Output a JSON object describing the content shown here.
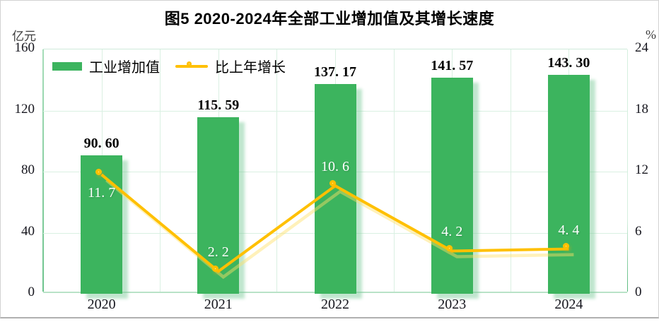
{
  "title": "图5 2020-2024年全部工业增加值及其增长速度",
  "left_axis": {
    "unit": "亿元",
    "ticks": [
      "160",
      "120",
      "80",
      "40",
      "0"
    ]
  },
  "right_axis": {
    "unit": "%",
    "ticks": [
      "24",
      "18",
      "12",
      "6",
      "0"
    ]
  },
  "legend": [
    {
      "label": "工业增加值",
      "type": "bar"
    },
    {
      "label": "比上年增长",
      "type": "line"
    }
  ],
  "colors": {
    "bar": "#3cb45e",
    "line": "#ffc000",
    "line_shadow": "#ffe066",
    "gridline": "#daf0e2",
    "bar_label": "#000000",
    "point_label": "#ffffff"
  },
  "chart_data": {
    "type": "bar+line combo",
    "title": "图5 2020-2024年全部工业增加值及其增长速度",
    "categories": [
      "2020",
      "2021",
      "2022",
      "2023",
      "2024"
    ],
    "series": [
      {
        "name": "工业增加值",
        "type": "bar",
        "axis": "left",
        "values": [
          90.6,
          115.59,
          137.17,
          141.57,
          143.3
        ],
        "labels": [
          "90. 60",
          "115. 59",
          "137. 17",
          "141. 57",
          "143. 30"
        ]
      },
      {
        "name": "比上年增长",
        "type": "line",
        "axis": "right",
        "values": [
          11.7,
          2.2,
          10.6,
          4.2,
          4.4
        ],
        "labels": [
          "11. 7",
          "2. 2",
          "10. 6",
          "4. 2",
          "4. 4"
        ]
      }
    ],
    "left_unit": "亿元",
    "right_unit": "%",
    "left_ylim": [
      0,
      160
    ],
    "left_tick_step": 40,
    "right_ylim": [
      0,
      24
    ],
    "right_tick_step": 6,
    "grid": true,
    "legend_position": "top-left inside plot"
  }
}
